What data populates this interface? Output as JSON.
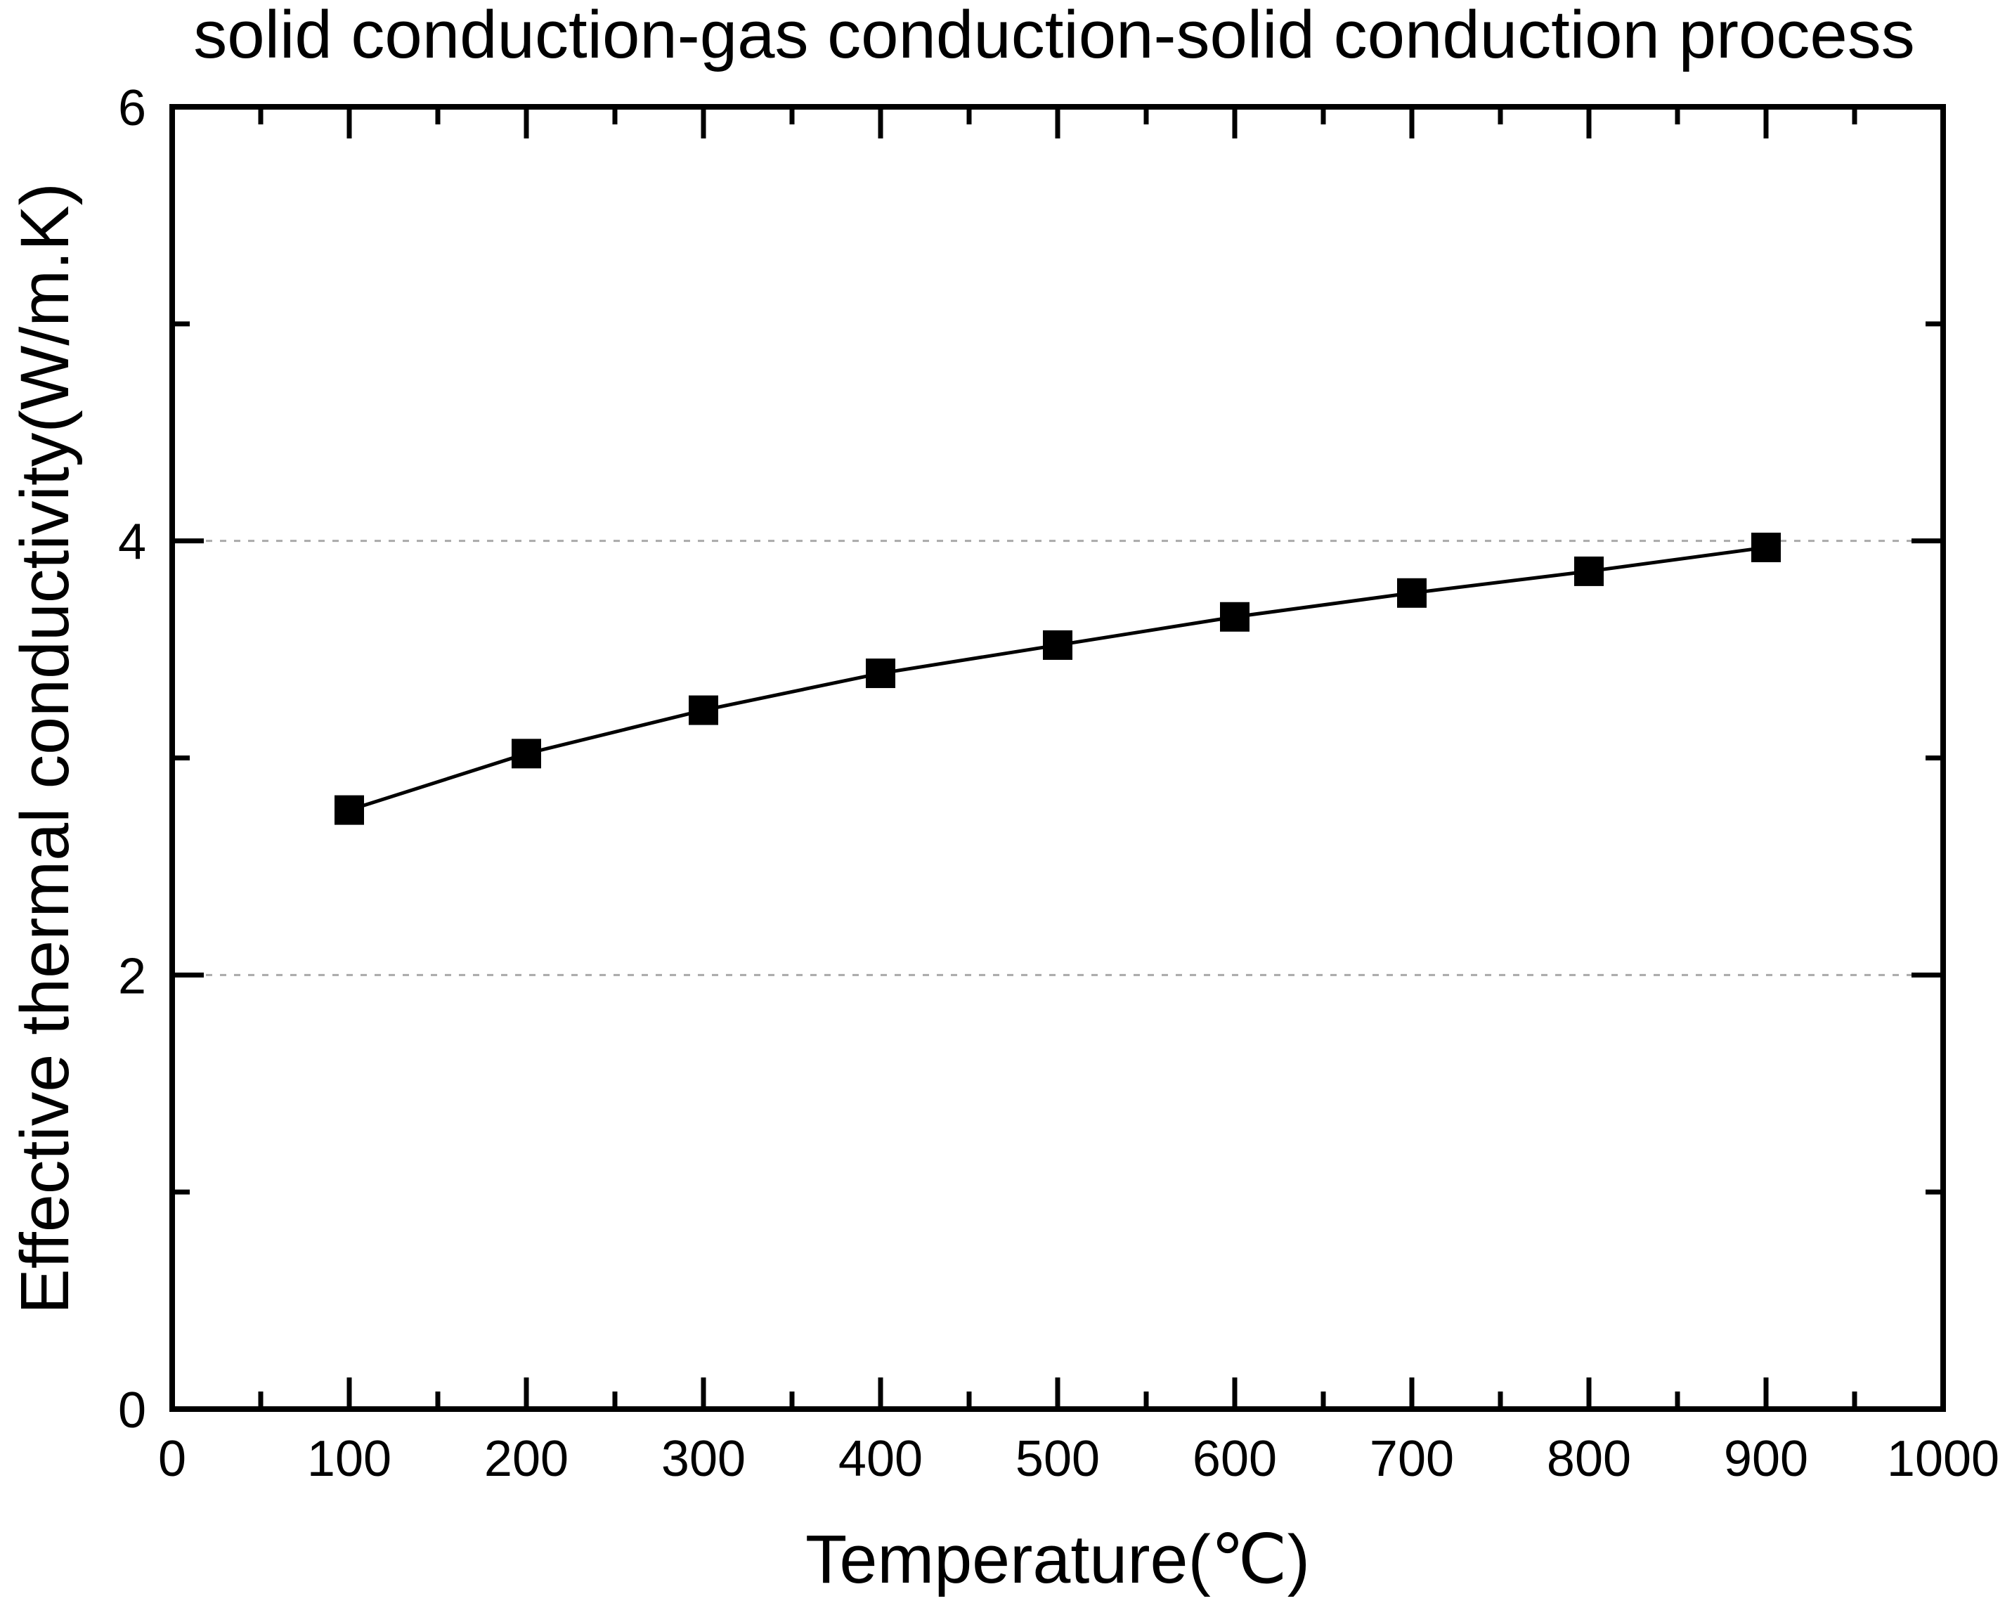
{
  "chart_data": {
    "type": "line",
    "title": "solid conduction-gas conduction-solid conduction process",
    "xlabel": "Temperature(℃)",
    "ylabel": "Effective thermal conductivity(W/m.K)",
    "x": [
      100,
      200,
      300,
      400,
      500,
      600,
      700,
      800,
      900
    ],
    "series": [
      {
        "name": "effective thermal conductivity",
        "values": [
          2.76,
          3.02,
          3.22,
          3.39,
          3.52,
          3.65,
          3.76,
          3.86,
          3.97
        ]
      }
    ],
    "xlim": [
      0,
      1000
    ],
    "ylim": [
      0,
      6
    ],
    "x_major_ticks": [
      0,
      100,
      200,
      300,
      400,
      500,
      600,
      700,
      800,
      900,
      1000
    ],
    "x_minor_ticks": [
      50,
      150,
      250,
      350,
      450,
      550,
      650,
      750,
      850,
      950
    ],
    "y_major_ticks": [
      0,
      2,
      4,
      6
    ],
    "y_minor_ticks": [
      1,
      3,
      5
    ],
    "gridlines_y": [
      2,
      4
    ],
    "grid_on": true,
    "grid_style": "dotted",
    "grid_color": "#aaaaaa",
    "line_color": "#000000",
    "frame_color": "#000000",
    "background_color": "#ffffff",
    "marker": "filled-square",
    "marker_size": 42,
    "legend_position": "none"
  }
}
